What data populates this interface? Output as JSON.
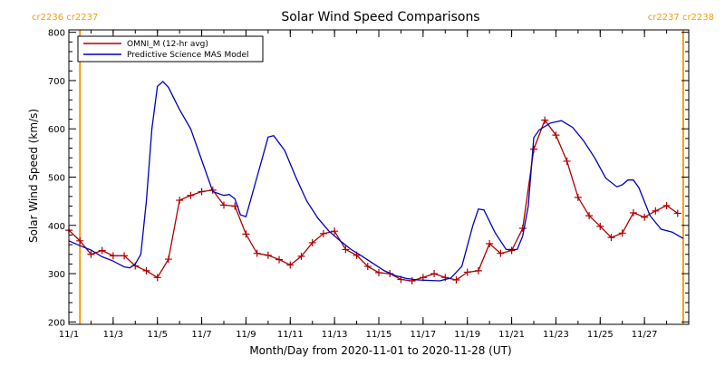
{
  "chart_data": {
    "type": "line",
    "title": "Solar Wind Speed Comparisons",
    "xlabel": "Month/Day from 2020-11-01 to 2020-11-28 (UT)",
    "ylabel": "Solar Wind Speed (km/s)",
    "xlim": [
      "2020-11-01",
      "2020-11-29"
    ],
    "ylim": [
      195,
      805
    ],
    "x_ticks": [
      {
        "date": "2020-11-01",
        "label": "11/1"
      },
      {
        "date": "2020-11-03",
        "label": "11/3"
      },
      {
        "date": "2020-11-05",
        "label": "11/5"
      },
      {
        "date": "2020-11-07",
        "label": "11/7"
      },
      {
        "date": "2020-11-09",
        "label": "11/9"
      },
      {
        "date": "2020-11-11",
        "label": "11/11"
      },
      {
        "date": "2020-11-13",
        "label": "11/13"
      },
      {
        "date": "2020-11-15",
        "label": "11/15"
      },
      {
        "date": "2020-11-17",
        "label": "11/17"
      },
      {
        "date": "2020-11-19",
        "label": "11/19"
      },
      {
        "date": "2020-11-21",
        "label": "11/21"
      },
      {
        "date": "2020-11-23",
        "label": "11/23"
      },
      {
        "date": "2020-11-25",
        "label": "11/25"
      },
      {
        "date": "2020-11-27",
        "label": "11/27"
      }
    ],
    "y_ticks": [
      200,
      300,
      400,
      500,
      600,
      700,
      800
    ],
    "legend_position": "top-left",
    "carrington_markers": [
      {
        "date": "2020-11-01T12:00",
        "labels": [
          "cr2236",
          "cr2237"
        ],
        "color": "#f39c12"
      },
      {
        "date": "2020-11-28T18:00",
        "labels": [
          "cr2237",
          "cr2238"
        ],
        "color": "#f39c12"
      }
    ],
    "series": [
      {
        "name": "OMNI_M (12-hr avg)",
        "color": "#b00000",
        "marker": "+",
        "points": [
          {
            "x": "2020-11-01T00:00",
            "y": 390
          },
          {
            "x": "2020-11-01T12:00",
            "y": 368
          },
          {
            "x": "2020-11-02T00:00",
            "y": 340
          },
          {
            "x": "2020-11-02T12:00",
            "y": 348
          },
          {
            "x": "2020-11-03T00:00",
            "y": 337
          },
          {
            "x": "2020-11-03T12:00",
            "y": 337
          },
          {
            "x": "2020-11-04T00:00",
            "y": 316
          },
          {
            "x": "2020-11-04T12:00",
            "y": 306
          },
          {
            "x": "2020-11-05T00:00",
            "y": 292
          },
          {
            "x": "2020-11-05T12:00",
            "y": 330
          },
          {
            "x": "2020-11-06T00:00",
            "y": 452
          },
          {
            "x": "2020-11-06T12:00",
            "y": 462
          },
          {
            "x": "2020-11-07T00:00",
            "y": 470
          },
          {
            "x": "2020-11-07T12:00",
            "y": 473
          },
          {
            "x": "2020-11-08T00:00",
            "y": 442
          },
          {
            "x": "2020-11-08T12:00",
            "y": 440
          },
          {
            "x": "2020-11-09T00:00",
            "y": 382
          },
          {
            "x": "2020-11-09T12:00",
            "y": 342
          },
          {
            "x": "2020-11-10T00:00",
            "y": 338
          },
          {
            "x": "2020-11-10T12:00",
            "y": 329
          },
          {
            "x": "2020-11-11T00:00",
            "y": 318
          },
          {
            "x": "2020-11-11T12:00",
            "y": 336
          },
          {
            "x": "2020-11-12T00:00",
            "y": 364
          },
          {
            "x": "2020-11-12T12:00",
            "y": 383
          },
          {
            "x": "2020-11-13T00:00",
            "y": 388
          },
          {
            "x": "2020-11-13T12:00",
            "y": 350
          },
          {
            "x": "2020-11-14T00:00",
            "y": 338
          },
          {
            "x": "2020-11-14T12:00",
            "y": 315
          },
          {
            "x": "2020-11-15T00:00",
            "y": 302
          },
          {
            "x": "2020-11-15T12:00",
            "y": 300
          },
          {
            "x": "2020-11-16T00:00",
            "y": 288
          },
          {
            "x": "2020-11-16T12:00",
            "y": 285
          },
          {
            "x": "2020-11-17T00:00",
            "y": 292
          },
          {
            "x": "2020-11-17T12:00",
            "y": 300
          },
          {
            "x": "2020-11-18T00:00",
            "y": 292
          },
          {
            "x": "2020-11-18T12:00",
            "y": 287
          },
          {
            "x": "2020-11-19T00:00",
            "y": 303
          },
          {
            "x": "2020-11-19T12:00",
            "y": 306
          },
          {
            "x": "2020-11-20T00:00",
            "y": 362
          },
          {
            "x": "2020-11-20T12:00",
            "y": 342
          },
          {
            "x": "2020-11-21T00:00",
            "y": 348
          },
          {
            "x": "2020-11-21T12:00",
            "y": 394
          },
          {
            "x": "2020-11-22T00:00",
            "y": 558
          },
          {
            "x": "2020-11-22T12:00",
            "y": 618
          },
          {
            "x": "2020-11-23T00:00",
            "y": 587
          },
          {
            "x": "2020-11-23T12:00",
            "y": 533
          },
          {
            "x": "2020-11-24T00:00",
            "y": 458
          },
          {
            "x": "2020-11-24T12:00",
            "y": 420
          },
          {
            "x": "2020-11-25T00:00",
            "y": 398
          },
          {
            "x": "2020-11-25T12:00",
            "y": 375
          },
          {
            "x": "2020-11-26T00:00",
            "y": 384
          },
          {
            "x": "2020-11-26T12:00",
            "y": 426
          },
          {
            "x": "2020-11-27T00:00",
            "y": 417
          },
          {
            "x": "2020-11-27T12:00",
            "y": 430
          },
          {
            "x": "2020-11-28T00:00",
            "y": 441
          },
          {
            "x": "2020-11-28T12:00",
            "y": 425
          }
        ]
      },
      {
        "name": "Predictive Science MAS Model",
        "color": "#0000c0",
        "marker": "none",
        "points": [
          {
            "x": "2020-11-01T00:00",
            "y": 368
          },
          {
            "x": "2020-11-01T12:00",
            "y": 358
          },
          {
            "x": "2020-11-02T00:00",
            "y": 349
          },
          {
            "x": "2020-11-02T12:00",
            "y": 335
          },
          {
            "x": "2020-11-03T00:00",
            "y": 326
          },
          {
            "x": "2020-11-03T12:00",
            "y": 314
          },
          {
            "x": "2020-11-03T18:00",
            "y": 312
          },
          {
            "x": "2020-11-04T00:00",
            "y": 320
          },
          {
            "x": "2020-11-04T06:00",
            "y": 340
          },
          {
            "x": "2020-11-04T12:00",
            "y": 450
          },
          {
            "x": "2020-11-04T18:00",
            "y": 600
          },
          {
            "x": "2020-11-05T00:00",
            "y": 688
          },
          {
            "x": "2020-11-05T06:00",
            "y": 698
          },
          {
            "x": "2020-11-05T12:00",
            "y": 686
          },
          {
            "x": "2020-11-06T00:00",
            "y": 640
          },
          {
            "x": "2020-11-06T12:00",
            "y": 600
          },
          {
            "x": "2020-11-07T00:00",
            "y": 535
          },
          {
            "x": "2020-11-07T12:00",
            "y": 470
          },
          {
            "x": "2020-11-08T00:00",
            "y": 462
          },
          {
            "x": "2020-11-08T06:00",
            "y": 464
          },
          {
            "x": "2020-11-08T12:00",
            "y": 455
          },
          {
            "x": "2020-11-08T18:00",
            "y": 422
          },
          {
            "x": "2020-11-09T00:00",
            "y": 418
          },
          {
            "x": "2020-11-09T12:00",
            "y": 500
          },
          {
            "x": "2020-11-10T00:00",
            "y": 583
          },
          {
            "x": "2020-11-10T06:00",
            "y": 586
          },
          {
            "x": "2020-11-10T18:00",
            "y": 555
          },
          {
            "x": "2020-11-11T06:00",
            "y": 500
          },
          {
            "x": "2020-11-11T18:00",
            "y": 450
          },
          {
            "x": "2020-11-12T06:00",
            "y": 415
          },
          {
            "x": "2020-11-12T18:00",
            "y": 388
          },
          {
            "x": "2020-11-13T06:00",
            "y": 368
          },
          {
            "x": "2020-11-13T18:00",
            "y": 350
          },
          {
            "x": "2020-11-14T06:00",
            "y": 336
          },
          {
            "x": "2020-11-14T18:00",
            "y": 321
          },
          {
            "x": "2020-11-15T06:00",
            "y": 306
          },
          {
            "x": "2020-11-15T18:00",
            "y": 296
          },
          {
            "x": "2020-11-16T06:00",
            "y": 290
          },
          {
            "x": "2020-11-16T18:00",
            "y": 287
          },
          {
            "x": "2020-11-17T06:00",
            "y": 286
          },
          {
            "x": "2020-11-17T18:00",
            "y": 285
          },
          {
            "x": "2020-11-18T06:00",
            "y": 291
          },
          {
            "x": "2020-11-18T18:00",
            "y": 315
          },
          {
            "x": "2020-11-19T06:00",
            "y": 400
          },
          {
            "x": "2020-11-19T12:00",
            "y": 434
          },
          {
            "x": "2020-11-19T18:00",
            "y": 432
          },
          {
            "x": "2020-11-20T06:00",
            "y": 385
          },
          {
            "x": "2020-11-20T18:00",
            "y": 350
          },
          {
            "x": "2020-11-21T06:00",
            "y": 350
          },
          {
            "x": "2020-11-21T12:00",
            "y": 378
          },
          {
            "x": "2020-11-21T18:00",
            "y": 440
          },
          {
            "x": "2020-11-22T00:00",
            "y": 582
          },
          {
            "x": "2020-11-22T06:00",
            "y": 598
          },
          {
            "x": "2020-11-22T18:00",
            "y": 612
          },
          {
            "x": "2020-11-23T06:00",
            "y": 617
          },
          {
            "x": "2020-11-23T18:00",
            "y": 603
          },
          {
            "x": "2020-11-24T06:00",
            "y": 575
          },
          {
            "x": "2020-11-24T18:00",
            "y": 540
          },
          {
            "x": "2020-11-25T06:00",
            "y": 498
          },
          {
            "x": "2020-11-25T18:00",
            "y": 480
          },
          {
            "x": "2020-11-26T00:00",
            "y": 484
          },
          {
            "x": "2020-11-26T06:00",
            "y": 494
          },
          {
            "x": "2020-11-26T12:00",
            "y": 494
          },
          {
            "x": "2020-11-26T18:00",
            "y": 478
          },
          {
            "x": "2020-11-27T06:00",
            "y": 420
          },
          {
            "x": "2020-11-27T18:00",
            "y": 392
          },
          {
            "x": "2020-11-28T06:00",
            "y": 386
          },
          {
            "x": "2020-11-28T18:00",
            "y": 373
          }
        ]
      }
    ]
  }
}
